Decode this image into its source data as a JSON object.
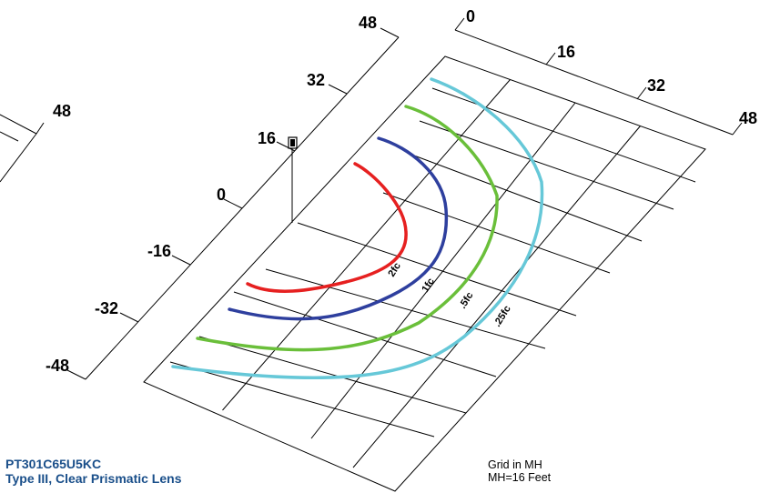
{
  "product": {
    "model": "PT301C65U5KC",
    "description": "Type III, Clear Prismatic Lens"
  },
  "notes": {
    "grid": "Grid in MH",
    "mh": "MH=16 Feet"
  },
  "axes": {
    "right_ticks": [
      "0",
      "16",
      "32",
      "48"
    ],
    "left_ticks": [
      "48",
      "32",
      "16",
      "0",
      "-16",
      "-32",
      "-48"
    ],
    "far_left_tick": "48"
  },
  "contours": [
    {
      "label": "2fc",
      "color": "#e62020"
    },
    {
      "label": "1fc",
      "color": "#2e3f9e"
    },
    {
      "label": ".5fc",
      "color": "#6abf3a"
    },
    {
      "label": ".25fc",
      "color": "#66c8d8"
    }
  ],
  "colors": {
    "title": "#1a4f8a",
    "grid": "#000000"
  }
}
